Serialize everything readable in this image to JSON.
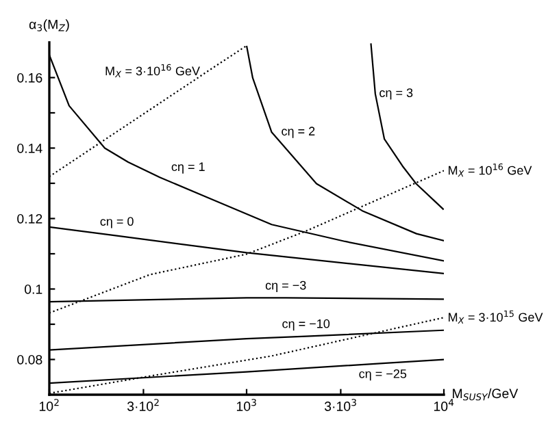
{
  "chart_data": {
    "type": "line",
    "ylabel": "α$_{3}$(M$_{Z}$)",
    "xlabel": "M$_{SUSY}$/GeV",
    "log": "x",
    "xlim": [
      100,
      10000
    ],
    "ylim": [
      0.07,
      0.17
    ],
    "xticks": [
      {
        "value": 100,
        "label": "10$^{2}$"
      },
      {
        "value": 300,
        "label": "3·10$^{2}$"
      },
      {
        "value": 1000,
        "label": "10$^{3}$"
      },
      {
        "value": 3000,
        "label": "3·10$^{3}$"
      },
      {
        "value": 10000,
        "label": "10$^{4}$"
      }
    ],
    "yticks": [
      0.08,
      {
        "value": 0.09,
        "label": null
      },
      0.1,
      {
        "value": 0.11,
        "label": null
      },
      0.12,
      {
        "value": 0.13,
        "label": null
      },
      0.14,
      {
        "value": 0.15,
        "label": null
      },
      0.16
    ],
    "grid": false,
    "legend": false,
    "marker": "none",
    "series": [
      {
        "color": "#000000",
        "line_style": "solid",
        "x": [
          100,
          126,
          191,
          251,
          363,
          631,
          1340,
          3160,
          10000
        ],
        "values": [
          0.1664,
          0.152,
          0.14,
          0.136,
          0.1317,
          0.126,
          0.1183,
          0.1135,
          0.108
        ]
      },
      {
        "color": "#000000",
        "line_style": "solid",
        "x": [
          1002,
          1074,
          1340,
          2260,
          3860,
          7260,
          10000
        ],
        "values": [
          0.1688,
          0.1599,
          0.1445,
          0.1299,
          0.1222,
          0.1157,
          0.1137
        ]
      },
      {
        "color": "#000000",
        "line_style": "solid",
        "x": [
          4270,
          4490,
          4990,
          6170,
          7230,
          9910
        ],
        "values": [
          0.1695,
          0.1554,
          0.1426,
          0.1349,
          0.1299,
          0.1227
        ]
      },
      {
        "color": "#000000",
        "line_style": "solid",
        "x": [
          100,
          220,
          1000,
          10000
        ],
        "values": [
          0.1176,
          0.1151,
          0.1103,
          0.1044
        ]
      },
      {
        "color": "#000000",
        "line_style": "solid",
        "x": [
          100,
          1000,
          1580,
          10000
        ],
        "values": [
          0.0964,
          0.0975,
          0.0975,
          0.0971
        ]
      },
      {
        "color": "#000000",
        "line_style": "solid",
        "x": [
          100,
          1000,
          2000,
          10000
        ],
        "values": [
          0.0827,
          0.0859,
          0.0866,
          0.0883
        ]
      },
      {
        "color": "#000000",
        "line_style": "solid",
        "x": [
          100,
          1000,
          4900,
          10000
        ],
        "values": [
          0.0733,
          0.0765,
          0.0789,
          0.08
        ]
      },
      {
        "color": "#000000",
        "line_style": "dotted",
        "x": [
          100,
          635,
          1002
        ],
        "values": [
          0.1319,
          0.1618,
          0.1691
        ]
      },
      {
        "color": "#000000",
        "line_style": "dotted",
        "x": [
          100,
          324,
          1000,
          1990,
          10000
        ],
        "values": [
          0.0932,
          0.1041,
          0.1099,
          0.1164,
          0.1336
        ]
      },
      {
        "color": "#000000",
        "line_style": "dotted",
        "x": [
          100,
          324,
          1340,
          10000
        ],
        "values": [
          0.0704,
          0.0753,
          0.081,
          0.0919
        ]
      }
    ],
    "annotations": [
      {
        "text": "M$_{X}$ = 3·10$^{16}$ GeV",
        "x": 635,
        "y": 0.1618
      },
      {
        "text": "cη = 1",
        "x": 363,
        "y": 0.1317
      },
      {
        "text": "cη = 0",
        "x": 220,
        "y": 0.1151
      },
      {
        "text": "cη = 2",
        "x": 1340,
        "y": 0.1445
      },
      {
        "text": "cη = 3",
        "x": 4490,
        "y": 0.1554
      },
      {
        "text": "M$_{X}$ = 10$^{16}$ GeV",
        "x": 10000,
        "y": 0.1336
      },
      {
        "text": "cη = −3",
        "x": 1580,
        "y": 0.0975
      },
      {
        "text": "cη = −10",
        "x": 2000,
        "y": 0.0866
      },
      {
        "text": "M$_{X}$ = 3·10$^{15}$ GeV",
        "x": 10000,
        "y": 0.0919
      },
      {
        "text": "cη = −25",
        "x": 4900,
        "y": 0.0789
      }
    ]
  }
}
